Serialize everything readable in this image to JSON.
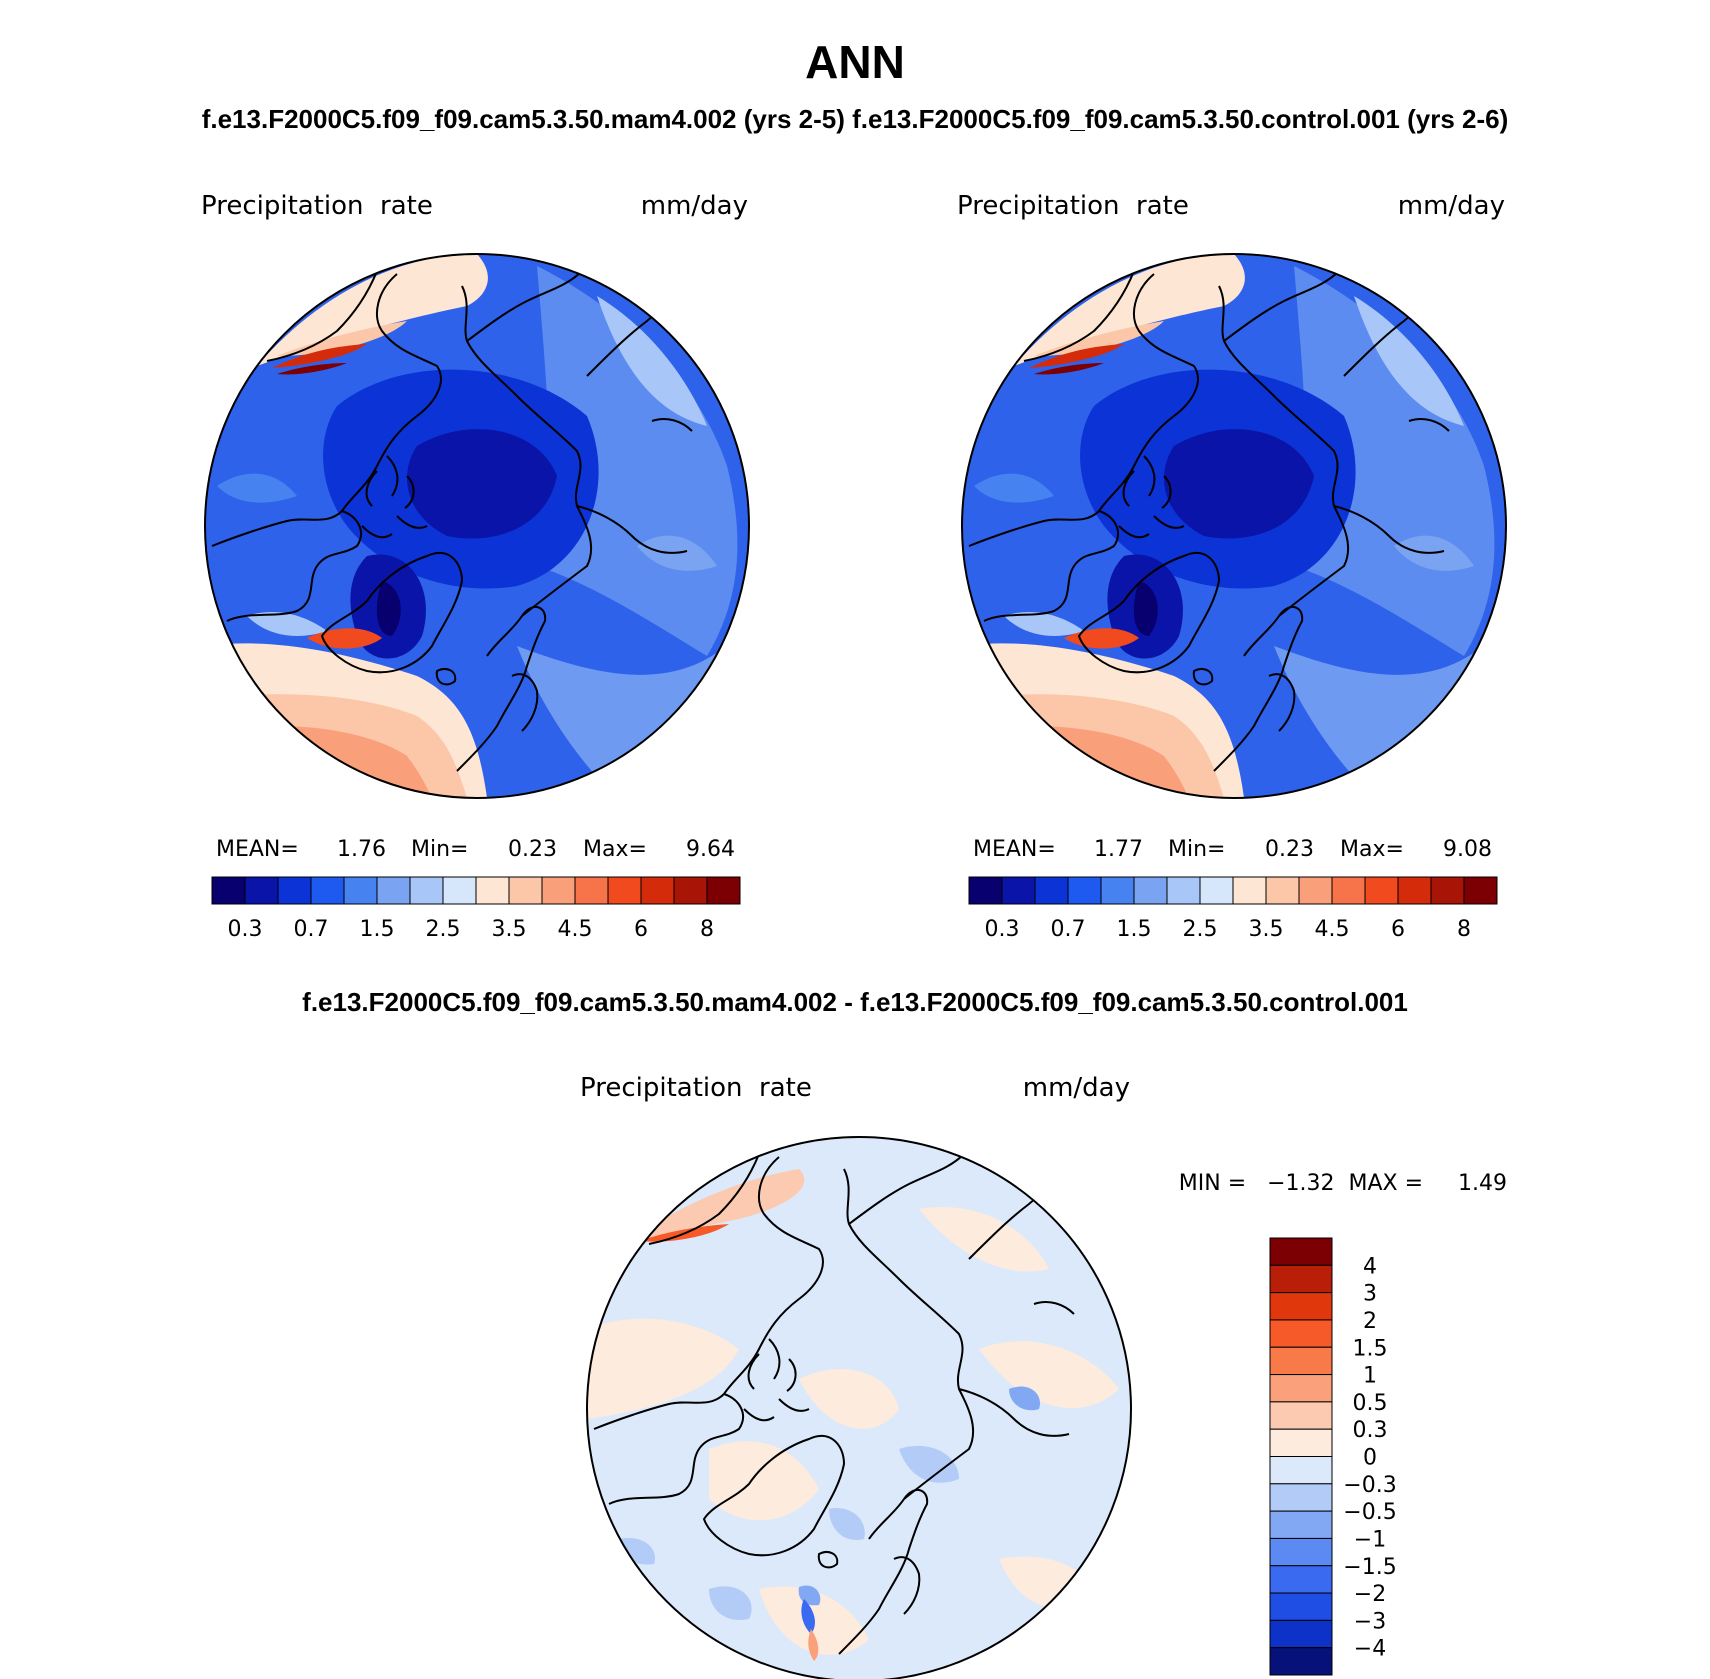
{
  "title": "ANN",
  "subtitle": "f.e13.F2000C5.f09_f09.cam5.3.50.mam4.002 (yrs 2-5) f.e13.F2000C5.f09_f09.cam5.3.50.control.001 (yrs 2-6)",
  "diff_title": "f.e13.F2000C5.f09_f09.cam5.3.50.mam4.002 - f.e13.F2000C5.f09_f09.cam5.3.50.control.001",
  "panels": [
    {
      "variable": "Precipitation  rate",
      "units": "mm/day",
      "stats": {
        "mean_label": "MEAN=",
        "mean": "1.76",
        "min_label": "Min=",
        "min": "0.23",
        "max_label": "Max=",
        "max": "9.64"
      }
    },
    {
      "variable": "Precipitation  rate",
      "units": "mm/day",
      "stats": {
        "mean_label": "MEAN=",
        "mean": "1.77",
        "min_label": "Min=",
        "min": "0.23",
        "max_label": "Max=",
        "max": "9.08"
      }
    }
  ],
  "diff_panel": {
    "variable": "Precipitation  rate",
    "units": "mm/day",
    "minmax": "MIN =   −1.32  MAX =     1.49"
  },
  "abs_colorbar": {
    "colors": [
      "#08006e",
      "#0a14a8",
      "#0b33d6",
      "#1e5af0",
      "#4682f0",
      "#7aa4f2",
      "#a8c6f8",
      "#d6e6fb",
      "#fde6d4",
      "#fcc6a8",
      "#f9a07a",
      "#f7744a",
      "#f04a1e",
      "#d42c0a",
      "#a81406",
      "#7c0003"
    ],
    "labels": [
      "0.3",
      "0.7",
      "1.5",
      "2.5",
      "3.5",
      "4.5",
      "6",
      "8"
    ]
  },
  "diff_colorbar": {
    "colors": [
      "#7c0003",
      "#b81e08",
      "#e0380c",
      "#f55a28",
      "#f87a48",
      "#faa07a",
      "#fccab0",
      "#fdebdd",
      "#dbe9fa",
      "#b2ccf7",
      "#82a8f3",
      "#5a8af2",
      "#3a6af0",
      "#1f4ee4",
      "#0d32c8",
      "#06127a"
    ],
    "labels": [
      "4",
      "3",
      "2",
      "1.5",
      "1",
      "0.5",
      "0.3",
      "0",
      "−0.3",
      "−0.5",
      "−1",
      "−1.5",
      "−2",
      "−3",
      "−4"
    ]
  }
}
